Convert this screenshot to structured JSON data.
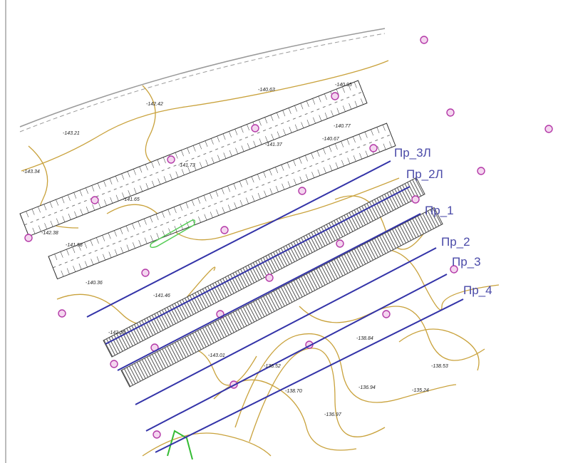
{
  "profiles": [
    "Пр_3Л",
    "Пр_2Л",
    "Пр_1",
    "Пр_2",
    "Пр_3",
    "Пр_4"
  ],
  "elevations": [
    "-142.42",
    "-143.21",
    "-143.34",
    "-140.95",
    "-140.63",
    "-140.77",
    "-140.67",
    "-141.37",
    "-141.73",
    "-141.65",
    "-142.38",
    "-141.58",
    "-140.36",
    "-141.46",
    "-142.15",
    "-143.01",
    "-138.52",
    "-138.84",
    "-138.53",
    "-136.94",
    "-135.24",
    "-138.70",
    "-136.97"
  ]
}
